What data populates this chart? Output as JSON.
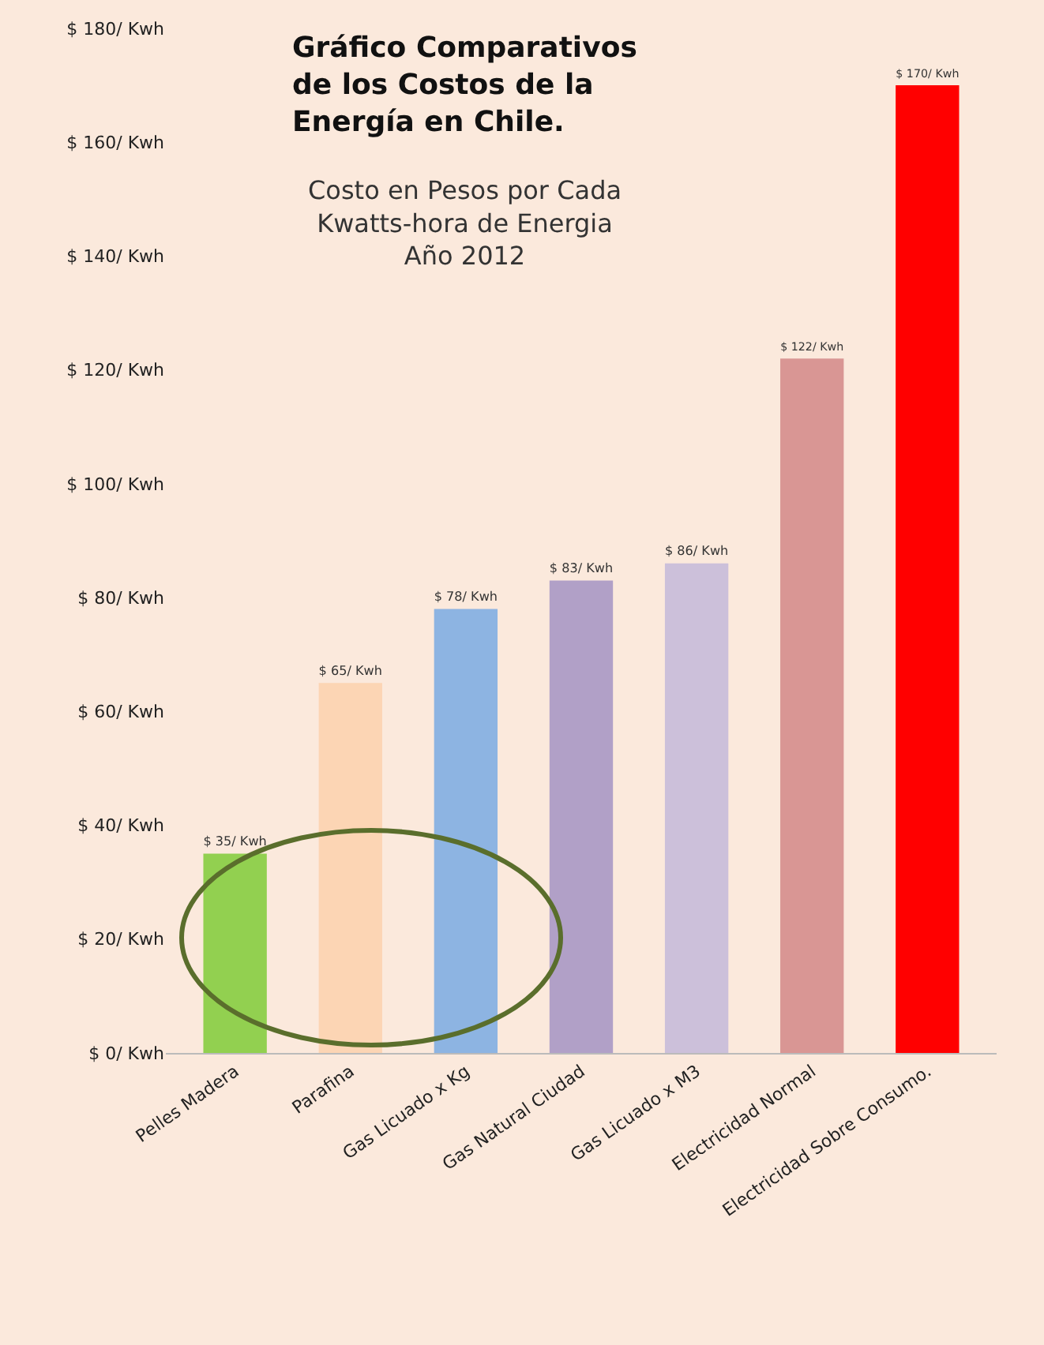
{
  "chart_data": {
    "type": "bar",
    "title": "Gráfico Comparativos de los Costos de la Energía en Chile.",
    "subtitle": "Costo en Pesos por Cada Kwatts-hora de Energia Año 2012",
    "categories": [
      "Pelles Madera",
      "Parafina",
      "Gas Licuado x Kg",
      "Gas Natural Ciudad",
      "Gas Licuado x M3",
      "Electricidad Normal",
      "Electricidad Sobre Consumo."
    ],
    "values": [
      35,
      65,
      78,
      83,
      86,
      122,
      170
    ],
    "colors": [
      "#92d050",
      "#fcd5b4",
      "#8db4e2",
      "#b1a0c7",
      "#ccc0da",
      "#d99694",
      "#ff0000"
    ],
    "value_labels": [
      "$ 35/ Kwh",
      "$ 65/ Kwh",
      "$ 78/ Kwh",
      "$ 83/ Kwh",
      "$ 86/ Kwh",
      "$ 122/ Kwh",
      "$ 170/ Kwh"
    ],
    "ylim": [
      0,
      180
    ],
    "yticks": [
      {
        "value": 0,
        "label": "$ 0/ Kwh"
      },
      {
        "value": 20,
        "label": "$ 20/ Kwh"
      },
      {
        "value": 40,
        "label": "$ 40/ Kwh"
      },
      {
        "value": 60,
        "label": "$ 60/ Kwh"
      },
      {
        "value": 80,
        "label": "$ 80/ Kwh"
      },
      {
        "value": 100,
        "label": "$ 100/ Kwh"
      },
      {
        "value": 120,
        "label": "$ 120/ Kwh"
      },
      {
        "value": 140,
        "label": "$ 140/ Kwh"
      },
      {
        "value": 160,
        "label": "$ 160/ Kwh"
      },
      {
        "value": 180,
        "label": "$ 180/ Kwh"
      }
    ],
    "grid": false
  }
}
